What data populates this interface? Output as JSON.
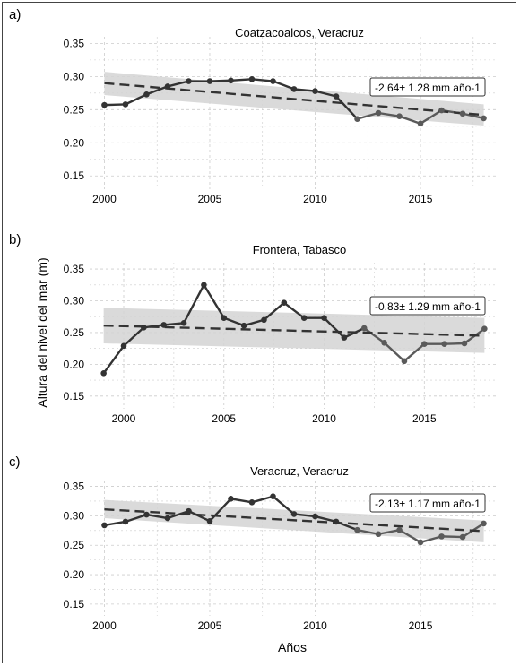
{
  "chart_data": [
    {
      "panel": "a)",
      "type": "line",
      "title": "Coatzacoalcos, Veracruz",
      "xlabel": "Años",
      "ylabel": "Altura del nivel del mar (m)",
      "xlim": [
        1999.3,
        2018.7
      ],
      "ylim": [
        0.13,
        0.36
      ],
      "x_ticks": [
        2000,
        2005,
        2010,
        2015
      ],
      "y_ticks": [
        0.15,
        0.2,
        0.25,
        0.3,
        0.35
      ],
      "y_tick_labels": [
        "0.15",
        "0.20",
        "0.25",
        "0.30",
        "0.35"
      ],
      "grid": true,
      "x": [
        2000,
        2001,
        2002,
        2003,
        2004,
        2005,
        2006,
        2007,
        2008,
        2009,
        2010,
        2011,
        2012,
        2013,
        2014,
        2015,
        2016,
        2017,
        2018
      ],
      "values": [
        0.257,
        0.258,
        0.273,
        0.285,
        0.293,
        0.293,
        0.294,
        0.296,
        0.293,
        0.281,
        0.278,
        0.27,
        0.236,
        0.245,
        0.24,
        0.229,
        0.249,
        0.244,
        0.237
      ],
      "trend": {
        "x": [
          2000,
          2018
        ],
        "y": [
          0.29,
          0.242
        ]
      },
      "ci_band": {
        "x": [
          2000,
          2018
        ],
        "lower": [
          0.272,
          0.226
        ],
        "upper": [
          0.307,
          0.258
        ]
      },
      "annotation": "-2.64± 1.28 mm año-1"
    },
    {
      "panel": "b)",
      "type": "line",
      "title": "Frontera, Tabasco",
      "xlabel": "Años",
      "ylabel": "Altura del nivel del mar (m)",
      "xlim": [
        1998.3,
        2018.7
      ],
      "ylim": [
        0.13,
        0.36
      ],
      "x_ticks": [
        2000,
        2005,
        2010,
        2015
      ],
      "y_ticks": [
        0.15,
        0.2,
        0.25,
        0.3,
        0.35
      ],
      "y_tick_labels": [
        "0.15",
        "0.20",
        "0.25",
        "0.30",
        "0.35"
      ],
      "grid": true,
      "x": [
        1999,
        2000,
        2001,
        2002,
        2003,
        2004,
        2005,
        2006,
        2007,
        2008,
        2009,
        2010,
        2011,
        2012,
        2013,
        2014,
        2015,
        2016,
        2017,
        2018
      ],
      "values": [
        0.186,
        0.229,
        0.258,
        0.262,
        0.265,
        0.325,
        0.273,
        0.261,
        0.27,
        0.297,
        0.273,
        0.273,
        0.242,
        0.257,
        0.234,
        0.205,
        0.232,
        0.232,
        0.233,
        0.256
      ],
      "trend": {
        "x": [
          1999,
          2018
        ],
        "y": [
          0.261,
          0.245
        ]
      },
      "ci_band": {
        "x": [
          1999,
          2018
        ],
        "lower": [
          0.233,
          0.218
        ],
        "upper": [
          0.289,
          0.273
        ]
      },
      "annotation": "-0.83± 1.29 mm año-1"
    },
    {
      "panel": "c)",
      "type": "line",
      "title": "Veracruz, Veracruz",
      "xlabel": "Años",
      "ylabel": "Altura del nivel del mar (m)",
      "xlim": [
        1999.3,
        2018.7
      ],
      "ylim": [
        0.13,
        0.36
      ],
      "x_ticks": [
        2000,
        2005,
        2010,
        2015
      ],
      "y_ticks": [
        0.15,
        0.2,
        0.25,
        0.3,
        0.35
      ],
      "y_tick_labels": [
        "0.15",
        "0.20",
        "0.25",
        "0.30",
        "0.35"
      ],
      "grid": true,
      "x": [
        2000,
        2001,
        2002,
        2003,
        2004,
        2005,
        2006,
        2007,
        2008,
        2009,
        2010,
        2011,
        2012,
        2013,
        2014,
        2015,
        2016,
        2017,
        2018
      ],
      "values": [
        0.284,
        0.29,
        0.302,
        0.296,
        0.308,
        0.291,
        0.329,
        0.323,
        0.333,
        0.303,
        0.299,
        0.29,
        0.276,
        0.269,
        0.276,
        0.255,
        0.265,
        0.264,
        0.287
      ],
      "trend": {
        "x": [
          2000,
          2018
        ],
        "y": [
          0.311,
          0.274
        ]
      },
      "ci_band": {
        "x": [
          2000,
          2018
        ],
        "lower": [
          0.296,
          0.255
        ],
        "upper": [
          0.327,
          0.292
        ]
      },
      "annotation": "-2.13± 1.17 mm año-1"
    }
  ],
  "colors": {
    "line_dark": "#333333",
    "line_light": "#5a5a5a",
    "band": "#d3d3d3",
    "trend": "#333333",
    "grid": "#cccccc"
  }
}
